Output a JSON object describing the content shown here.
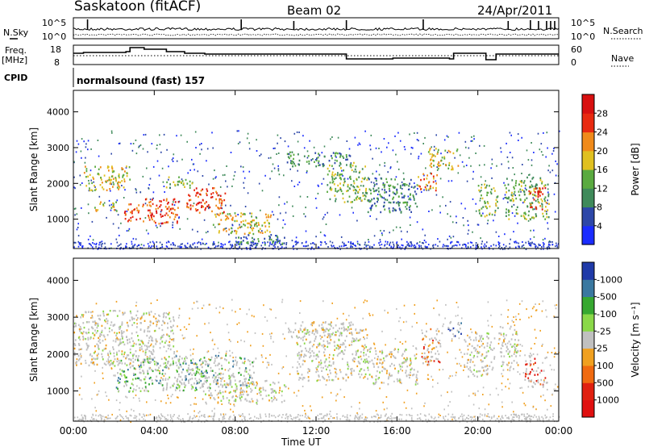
{
  "header": {
    "station": "Saskatoon (fitACF)",
    "beam": "Beam 02",
    "date": "24/Apr/2011"
  },
  "noise_panel": {
    "left_label": "N.Sky",
    "right_label": "N.Search",
    "y_ticks": [
      "10^5",
      "10^0"
    ],
    "y_ticks_right": [
      "10^5",
      "10^0"
    ]
  },
  "freq_panel": {
    "left_label_1": "Freq.",
    "left_label_2": "[MHz]",
    "right_label": "Nave",
    "y_ticks": [
      "18",
      "8"
    ],
    "y_ticks_right": [
      "60",
      "0"
    ]
  },
  "cpid": {
    "label": "CPID",
    "value": "normalsound (fast) 157"
  },
  "x_axis": {
    "title": "Time UT",
    "ticks": [
      "00:00",
      "04:00",
      "08:00",
      "12:00",
      "16:00",
      "20:00",
      "00:00"
    ]
  },
  "chart_data": [
    {
      "type": "heatmap",
      "title": "",
      "quantity": "Power",
      "ylabel": "Slant Range [km]",
      "xlabel": "",
      "yticks": [
        1000,
        2000,
        3000,
        4000
      ],
      "ylim": [
        180,
        4600
      ],
      "colorbar": {
        "label": "Power [dB]",
        "ticks": [
          "4",
          "8",
          "12",
          "16",
          "20",
          "24",
          "28"
        ],
        "colors": [
          "#1a2cff",
          "#2d47a8",
          "#3f8a5a",
          "#5aaa40",
          "#e0c020",
          "#f08a1a",
          "#e82a10",
          "#d81010"
        ]
      },
      "echo_regions": [
        {
          "t": [
            0.5,
            2.8
          ],
          "r": [
            1800,
            2500
          ],
          "level": 4
        },
        {
          "t": [
            1.0,
            2.2
          ],
          "r": [
            1250,
            1500
          ],
          "level": 4
        },
        {
          "t": [
            2.5,
            5.2
          ],
          "r": [
            900,
            1600
          ],
          "level": 6
        },
        {
          "t": [
            4.5,
            6.0
          ],
          "r": [
            1900,
            2200
          ],
          "level": 3
        },
        {
          "t": [
            5.5,
            7.5
          ],
          "r": [
            1200,
            1900
          ],
          "level": 6
        },
        {
          "t": [
            6.8,
            9.8
          ],
          "r": [
            600,
            1200
          ],
          "level": 4
        },
        {
          "t": [
            8.0,
            10.5
          ],
          "r": [
            300,
            600
          ],
          "level": 2
        },
        {
          "t": [
            10.5,
            13.8
          ],
          "r": [
            2500,
            2900
          ],
          "level": 2
        },
        {
          "t": [
            12.5,
            14.5
          ],
          "r": [
            1500,
            2600
          ],
          "level": 3
        },
        {
          "t": [
            14.5,
            17.0
          ],
          "r": [
            1200,
            2200
          ],
          "level": 2
        },
        {
          "t": [
            17.0,
            18.0
          ],
          "r": [
            1800,
            2300
          ],
          "level": 5
        },
        {
          "t": [
            17.5,
            19.0
          ],
          "r": [
            2400,
            3000
          ],
          "level": 4
        },
        {
          "t": [
            20.0,
            21.0
          ],
          "r": [
            1100,
            2000
          ],
          "level": 3
        },
        {
          "t": [
            21.3,
            23.5
          ],
          "r": [
            1000,
            2200
          ],
          "level": 3
        },
        {
          "t": [
            22.5,
            23.4
          ],
          "r": [
            1300,
            1900
          ],
          "level": 6
        }
      ]
    },
    {
      "type": "heatmap",
      "title": "",
      "quantity": "Velocity",
      "ylabel": "Slant Range [km]",
      "xlabel": "Time UT",
      "yticks": [
        1000,
        2000,
        3000,
        4000
      ],
      "ylim": [
        180,
        4600
      ],
      "colorbar": {
        "label": "Velocity [m s⁻¹]",
        "ticks": [
          "1000",
          "500",
          "100",
          "25",
          "-25",
          "-100",
          "-500",
          "-1000"
        ],
        "colors": [
          "#1f3aa8",
          "#3a78a0",
          "#36a830",
          "#8ad848",
          "#c0c0c0",
          "#f0a020",
          "#f06a10",
          "#e02010",
          "#e01010"
        ]
      },
      "echo_regions": [
        {
          "t": [
            0.0,
            5.0
          ],
          "r": [
            1700,
            3200
          ],
          "level": 4
        },
        {
          "t": [
            2.0,
            6.5
          ],
          "r": [
            1000,
            1900
          ],
          "level": 2
        },
        {
          "t": [
            5.0,
            9.0
          ],
          "r": [
            1100,
            2000
          ],
          "level": 2
        },
        {
          "t": [
            6.5,
            10.5
          ],
          "r": [
            700,
            1300
          ],
          "level": 4
        },
        {
          "t": [
            10.5,
            13.8
          ],
          "r": [
            2500,
            2900
          ],
          "level": 4
        },
        {
          "t": [
            11.0,
            14.5
          ],
          "r": [
            1300,
            2700
          ],
          "level": 4
        },
        {
          "t": [
            14.5,
            17.0
          ],
          "r": [
            1200,
            2200
          ],
          "level": 4
        },
        {
          "t": [
            17.2,
            18.2
          ],
          "r": [
            1700,
            2700
          ],
          "level": 6
        },
        {
          "t": [
            18.5,
            19.2
          ],
          "r": [
            2500,
            2900
          ],
          "level": 0
        },
        {
          "t": [
            19.3,
            20.8
          ],
          "r": [
            1400,
            2600
          ],
          "level": 4
        },
        {
          "t": [
            21.0,
            22.0
          ],
          "r": [
            1500,
            2800
          ],
          "level": 4
        },
        {
          "t": [
            22.3,
            23.4
          ],
          "r": [
            1100,
            2000
          ],
          "level": 7
        }
      ]
    }
  ]
}
